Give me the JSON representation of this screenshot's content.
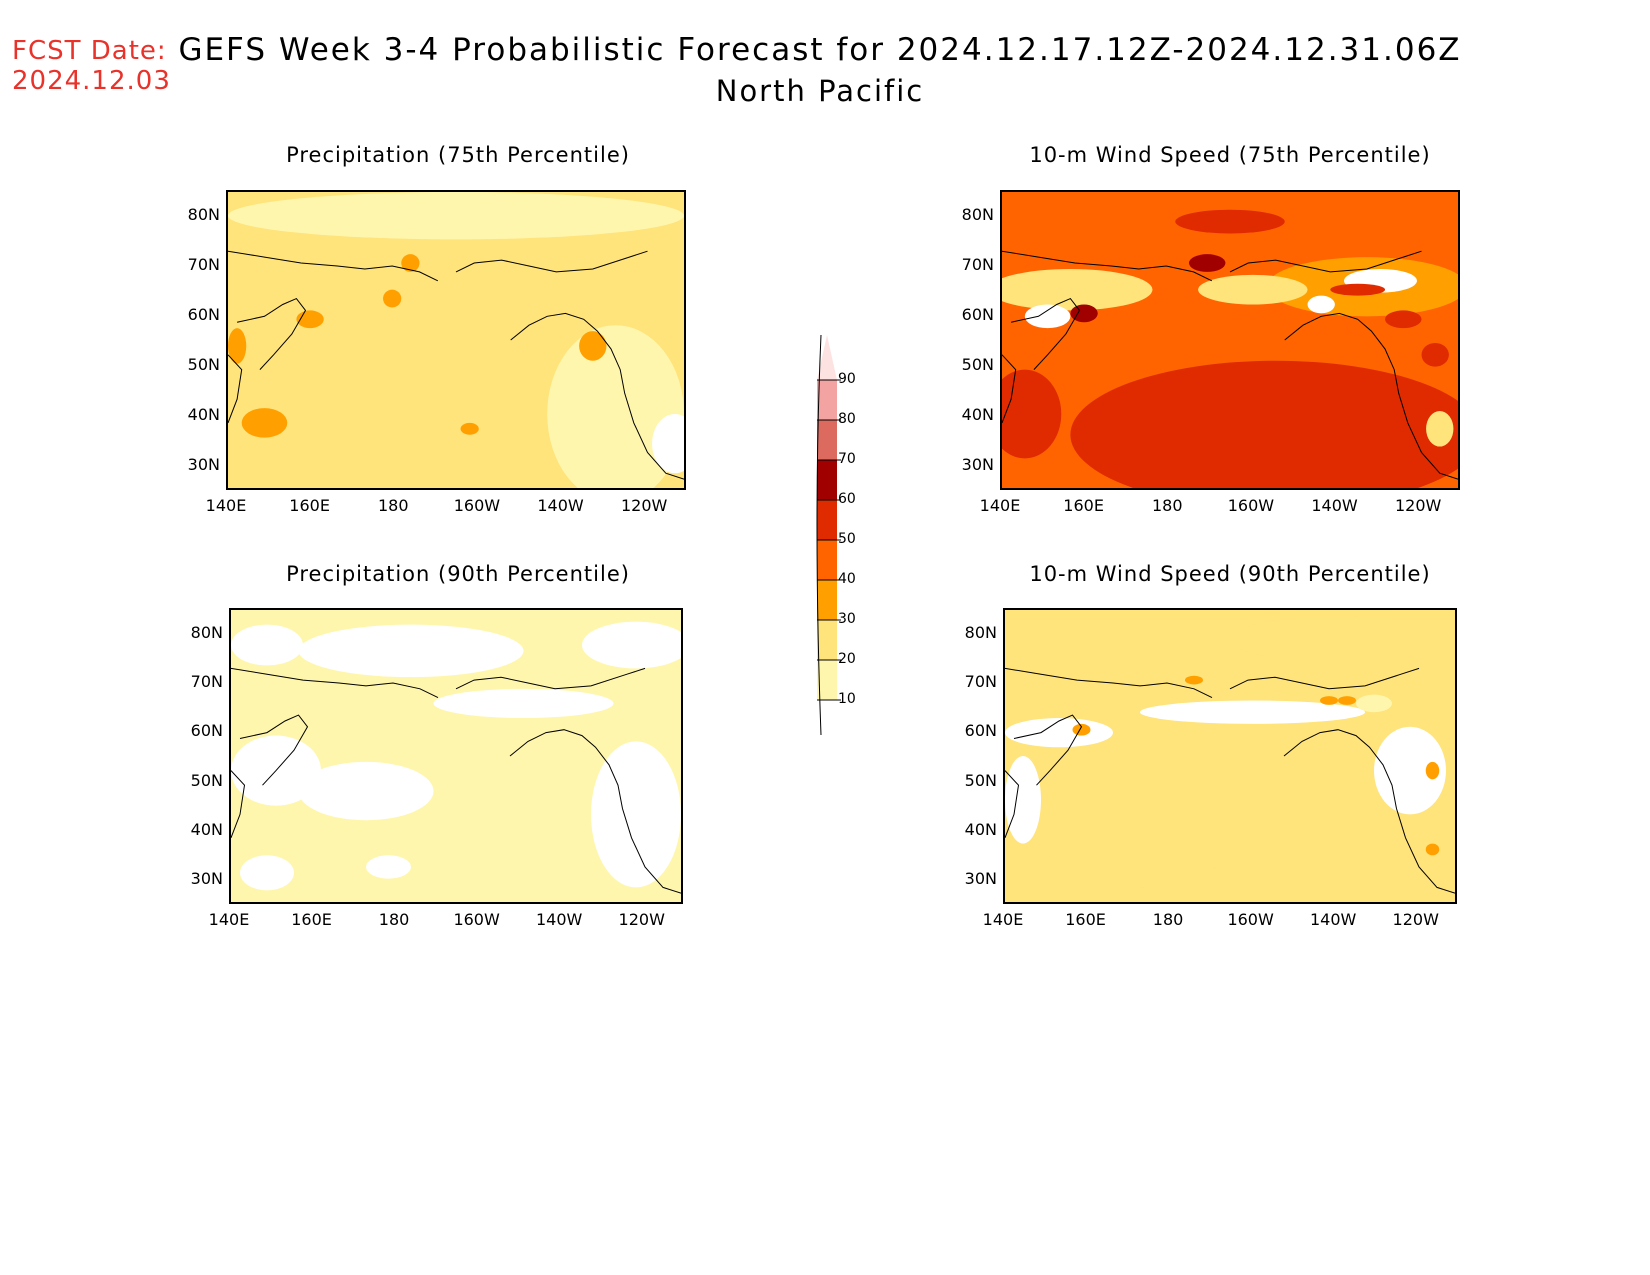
{
  "header": {
    "fcst_label": "FCST Date:",
    "fcst_date": "2024.12.03",
    "title": "GEFS Week 3-4 Probabilistic Forecast for 2024.12.17.12Z-2024.12.31.06Z",
    "region": "North Pacific"
  },
  "axes": {
    "lat_labels": [
      "80N",
      "70N",
      "60N",
      "50N",
      "40N",
      "30N"
    ],
    "lon_labels": [
      "140E",
      "160E",
      "180",
      "160W",
      "140W",
      "120W"
    ]
  },
  "colorbar": {
    "levels": [
      "90",
      "80",
      "70",
      "60",
      "50",
      "40",
      "30",
      "20",
      "10"
    ],
    "colors": [
      "#fde2e2",
      "#f4a3a3",
      "#dc6a5e",
      "#a00000",
      "#e02a00",
      "#ff6400",
      "#ffa000",
      "#ffe37b",
      "#fff6ad"
    ]
  },
  "panels": [
    {
      "title": "Precipitation (75th Percentile)",
      "dominant_category": "20-30"
    },
    {
      "title": "10-m Wind Speed (75th Percentile)",
      "dominant_category": "30-50"
    },
    {
      "title": "Precipitation (90th Percentile)",
      "dominant_category": "10-20"
    },
    {
      "title": "10-m Wind Speed (90th Percentile)",
      "dominant_category": "10-30"
    }
  ]
}
